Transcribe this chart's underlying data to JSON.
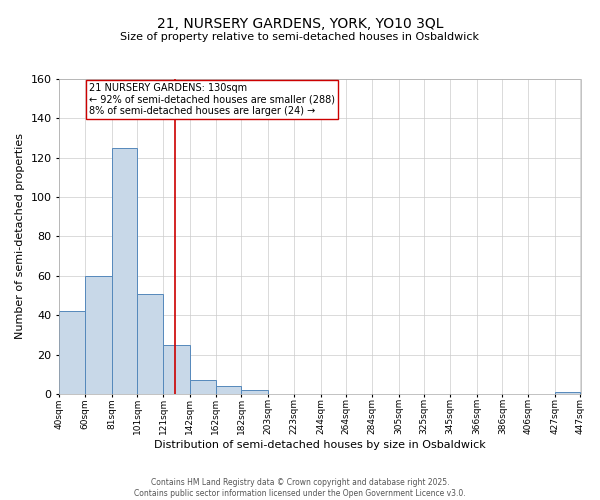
{
  "title": "21, NURSERY GARDENS, YORK, YO10 3QL",
  "subtitle": "Size of property relative to semi-detached houses in Osbaldwick",
  "xlabel": "Distribution of semi-detached houses by size in Osbaldwick",
  "ylabel": "Number of semi-detached properties",
  "bin_edges": [
    40,
    60,
    81,
    101,
    121,
    142,
    162,
    182,
    203,
    223,
    244,
    264,
    284,
    305,
    325,
    345,
    366,
    386,
    406,
    427,
    447
  ],
  "counts": [
    42,
    60,
    125,
    51,
    25,
    7,
    4,
    2,
    0,
    0,
    0,
    0,
    0,
    0,
    0,
    0,
    0,
    0,
    0,
    1
  ],
  "bar_color": "#c8d8e8",
  "bar_edge_color": "#5588bb",
  "property_size": 130,
  "annotation_line1": "21 NURSERY GARDENS: 130sqm",
  "annotation_line2": "← 92% of semi-detached houses are smaller (288)",
  "annotation_line3": "8% of semi-detached houses are larger (24) →",
  "vline_color": "#cc0000",
  "ylim": [
    0,
    160
  ],
  "yticks": [
    0,
    20,
    40,
    60,
    80,
    100,
    120,
    140,
    160
  ],
  "tick_labels": [
    "40sqm",
    "60sqm",
    "81sqm",
    "101sqm",
    "121sqm",
    "142sqm",
    "162sqm",
    "182sqm",
    "203sqm",
    "223sqm",
    "244sqm",
    "264sqm",
    "284sqm",
    "305sqm",
    "325sqm",
    "345sqm",
    "366sqm",
    "386sqm",
    "406sqm",
    "427sqm",
    "447sqm"
  ],
  "footer1": "Contains HM Land Registry data © Crown copyright and database right 2025.",
  "footer2": "Contains public sector information licensed under the Open Government Licence v3.0.",
  "background_color": "#ffffff",
  "grid_color": "#cccccc",
  "title_fontsize": 10,
  "subtitle_fontsize": 8,
  "ylabel_fontsize": 8,
  "xlabel_fontsize": 8,
  "ytick_fontsize": 8,
  "xtick_fontsize": 6.5,
  "annotation_fontsize": 7,
  "footer_fontsize": 5.5
}
